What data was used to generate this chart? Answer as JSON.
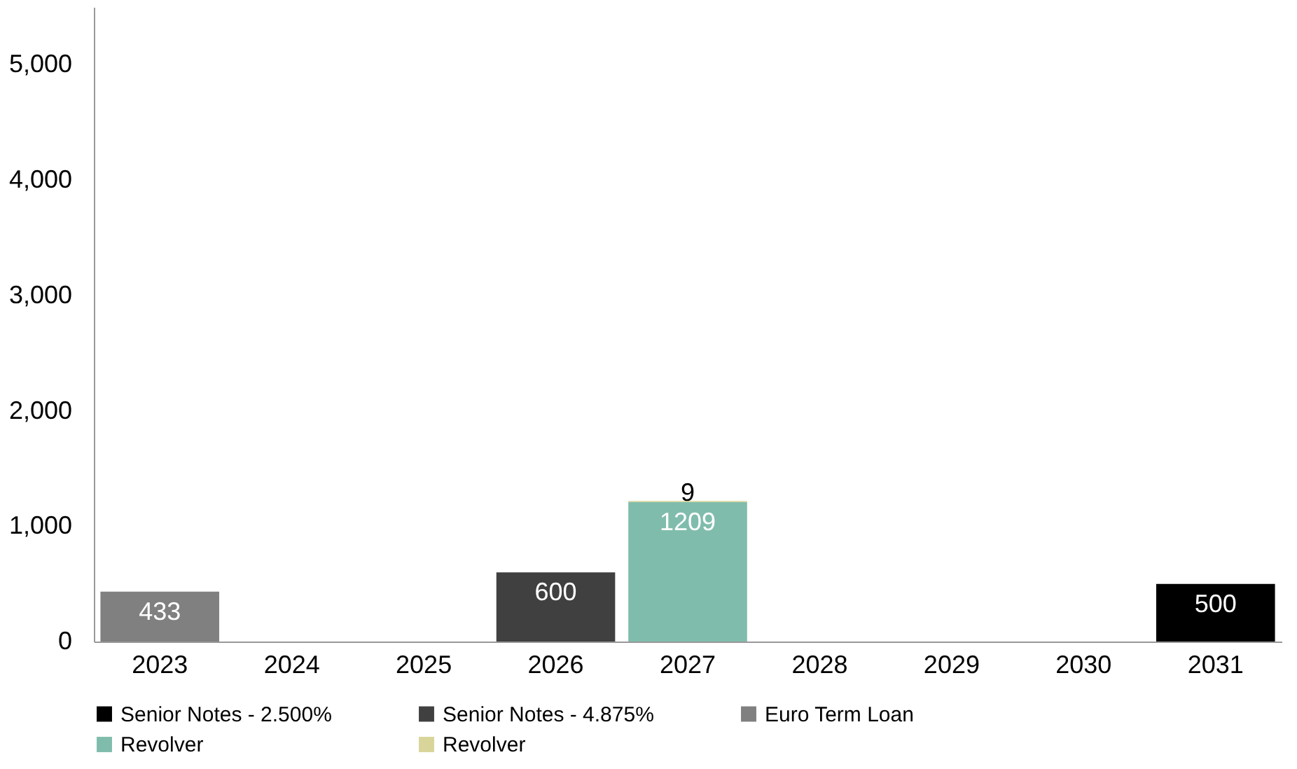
{
  "chart_data": {
    "type": "bar",
    "stacked": true,
    "categories": [
      "2023",
      "2024",
      "2025",
      "2026",
      "2027",
      "2028",
      "2029",
      "2030",
      "2031"
    ],
    "series": [
      {
        "name": "Senior Notes - 2.500%",
        "color": "#000000",
        "values": [
          null,
          null,
          null,
          null,
          null,
          null,
          null,
          null,
          500
        ]
      },
      {
        "name": "Senior Notes - 4.875%",
        "color": "#404040",
        "values": [
          null,
          null,
          null,
          600,
          null,
          null,
          null,
          null,
          null
        ]
      },
      {
        "name": "Euro Term Loan",
        "color": "#808080",
        "values": [
          433,
          null,
          null,
          null,
          null,
          null,
          null,
          null,
          null
        ]
      },
      {
        "name": "Revolver",
        "color": "#80bcac",
        "values": [
          null,
          null,
          null,
          null,
          1209,
          null,
          null,
          null,
          null
        ]
      },
      {
        "name": "Revolver",
        "color": "#d9d59a",
        "values": [
          null,
          null,
          null,
          null,
          9,
          null,
          null,
          null,
          null
        ]
      }
    ],
    "ylim": [
      0,
      5500
    ],
    "yticks": [
      0,
      {
        "value": 1000,
        "label": "1,000"
      },
      {
        "value": 2000,
        "label": "2,000"
      },
      {
        "value": 3000,
        "label": "3,000"
      },
      {
        "value": 4000,
        "label": "4,000"
      },
      {
        "value": 5000,
        "label": "5,000"
      }
    ],
    "grid": false,
    "legend": "bottom",
    "data_labels": true
  }
}
